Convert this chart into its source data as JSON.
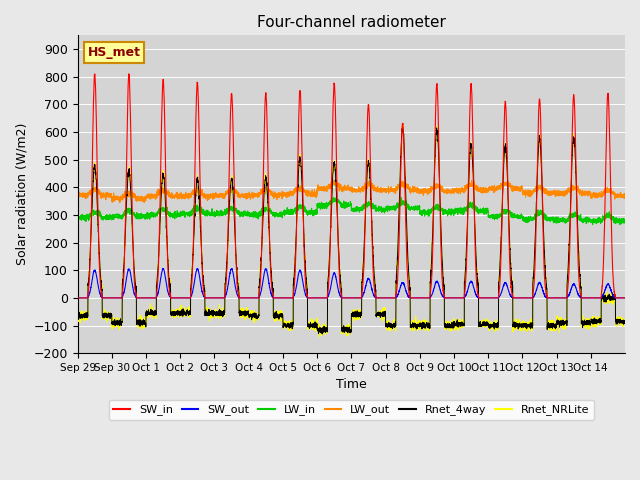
{
  "title": "Four-channel radiometer",
  "xlabel": "Time",
  "ylabel": "Solar radiation (W/m2)",
  "ylim": [
    -200,
    950
  ],
  "yticks": [
    -200,
    -100,
    0,
    100,
    200,
    300,
    400,
    500,
    600,
    700,
    800,
    900
  ],
  "x_labels": [
    "Sep 29",
    "Sep 30",
    "Oct 1",
    "Oct 2",
    "Oct 3",
    "Oct 4",
    "Oct 5",
    "Oct 6",
    "Oct 7",
    "Oct 8",
    "Oct 9",
    "Oct 10",
    "Oct 11",
    "Oct 12",
    "Oct 13",
    "Oct 14"
  ],
  "background_color": "#e8e8e8",
  "plot_bg_color": "#d4d4d4",
  "legend_label": "HS_met",
  "series_colors": {
    "SW_in": "#ff0000",
    "SW_out": "#0000ff",
    "LW_in": "#00cc00",
    "LW_out": "#ff8800",
    "Rnet_4way": "#000000",
    "Rnet_NRLite": "#ffff00"
  },
  "n_days": 16,
  "title_fontsize": 11,
  "axis_fontsize": 9,
  "sw_in_peaks": [
    810,
    810,
    790,
    780,
    740,
    740,
    750,
    775,
    700,
    630,
    775,
    775,
    710,
    720,
    735,
    740
  ],
  "sw_out_peaks": [
    100,
    105,
    105,
    105,
    105,
    105,
    100,
    90,
    70,
    55,
    60,
    60,
    55,
    55,
    50,
    50
  ],
  "lw_out_base": [
    370,
    360,
    368,
    368,
    370,
    372,
    375,
    395,
    390,
    390,
    385,
    390,
    395,
    380,
    378,
    370
  ],
  "lw_in_base": [
    290,
    295,
    300,
    305,
    305,
    302,
    310,
    335,
    320,
    325,
    310,
    315,
    295,
    285,
    282,
    278
  ],
  "rnet_night": [
    -65,
    -90,
    -55,
    -55,
    -55,
    -65,
    -100,
    -115,
    -60,
    -100,
    -100,
    -95,
    -100,
    -100,
    -90,
    -85
  ],
  "rnet_day_peaks": [
    480,
    460,
    450,
    430,
    430,
    435,
    505,
    490,
    490,
    615,
    608,
    558,
    548,
    575,
    582,
    0
  ]
}
